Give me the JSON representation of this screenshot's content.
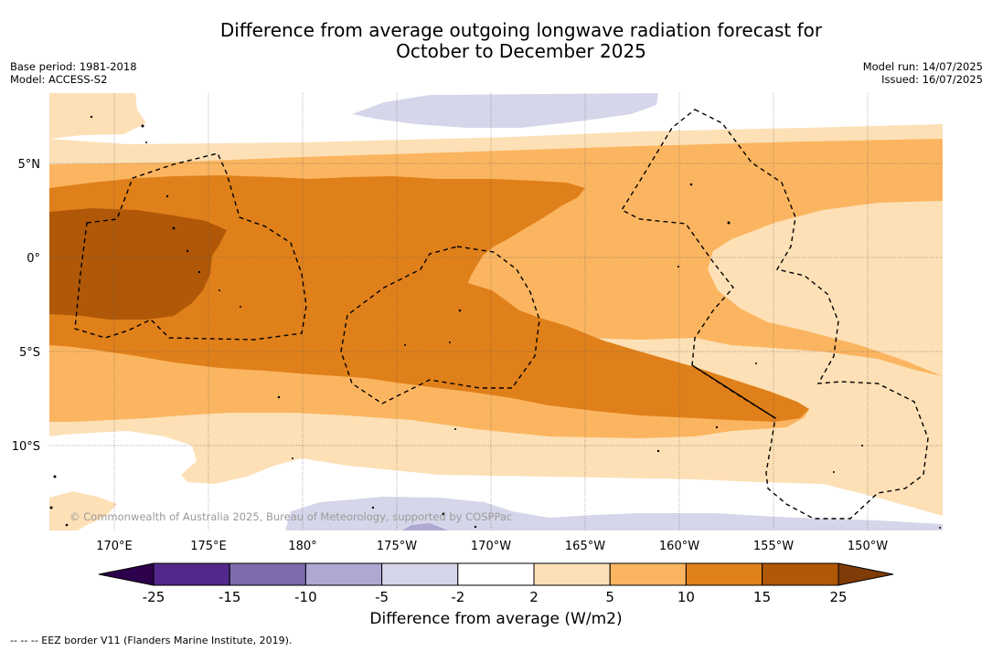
{
  "title_line1": "Difference from average outgoing longwave radiation forecast for",
  "title_line2": "October to December 2025",
  "base_period": "Base period: 1981-2018",
  "model": "Model: ACCESS-S2",
  "model_run": "Model run: 14/07/2025",
  "issued": "Issued: 16/07/2025",
  "copyright": "© Commonwealth of Australia 2025, Bureau of Meteorology, supported by COSPPac",
  "lat_labels": [
    "5°N",
    "0°",
    "5°S",
    "10°S"
  ],
  "lon_labels": [
    "170°E",
    "175°E",
    "180°",
    "175°W",
    "170°W",
    "165°W",
    "160°W",
    "155°W",
    "150°W"
  ],
  "colorbar": {
    "title": "Difference from average (W/m2)",
    "tick_labels": [
      "-25",
      "-15",
      "-10",
      "-5",
      "-2",
      "2",
      "5",
      "10",
      "15",
      "25"
    ],
    "colors": [
      "#52288a",
      "#7e6aad",
      "#aea8d2",
      "#d6d6ea",
      "#ffffff",
      "#fde0b6",
      "#fbb560",
      "#e0801a",
      "#b05808"
    ],
    "extend_low_color": "#2d004b",
    "extend_high_color": "#7f3b08"
  },
  "footnote": "--  --  -- EEZ border V11 (Flanders Marine Institute, 2019)."
}
